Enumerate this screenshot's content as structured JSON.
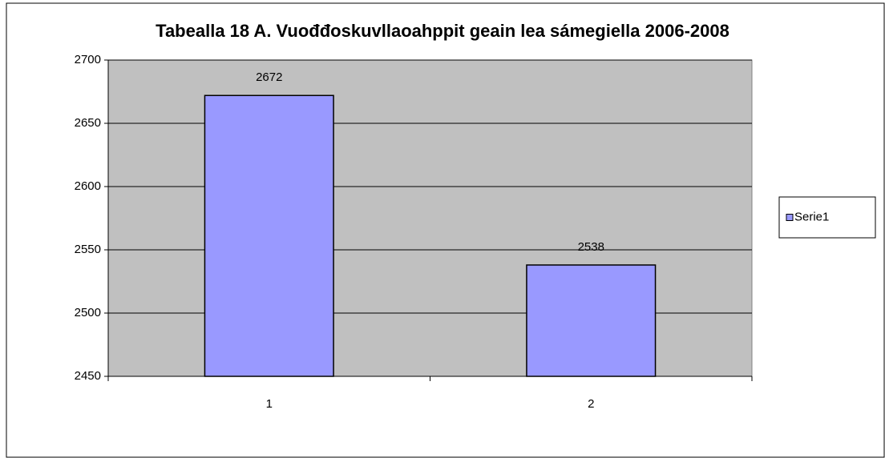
{
  "chart_data": {
    "type": "bar",
    "title": "Tabealla 18 A. Vuođđoskuvllaoahppit geain lea sámegiella 2006-2008",
    "categories": [
      "1",
      "2"
    ],
    "series": [
      {
        "name": "Serie1",
        "color": "#9999ff",
        "values": [
          2672,
          2538
        ]
      }
    ],
    "ylim": [
      2450,
      2700
    ],
    "yticks": [
      2450,
      2500,
      2550,
      2600,
      2650,
      2700
    ],
    "grid": true,
    "legend": "right"
  }
}
